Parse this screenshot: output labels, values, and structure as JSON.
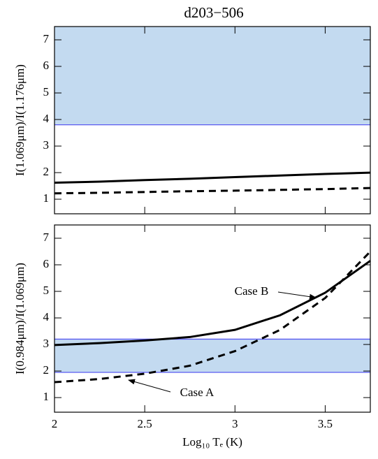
{
  "chart_data": [
    {
      "type": "line",
      "title": "d203−506",
      "ylabel": "I(1.069μm)/I(1.176μm)",
      "x": [
        2,
        2.25,
        2.5,
        2.75,
        3,
        3.25,
        3.5,
        3.75
      ],
      "series": [
        {
          "color": "#000000",
          "dash": false,
          "values": [
            1.62,
            1.66,
            1.72,
            1.77,
            1.83,
            1.89,
            1.95,
            2.0
          ]
        },
        {
          "color": "#000000",
          "dash": true,
          "values": [
            1.22,
            1.24,
            1.27,
            1.3,
            1.32,
            1.35,
            1.38,
            1.42
          ]
        }
      ],
      "band": [
        3.8,
        7.5
      ],
      "band_color": "#c3daf0",
      "band_edge_color": "#5a5af0",
      "xlim": [
        2,
        3.75
      ],
      "ylim": [
        0.45,
        7.5
      ],
      "xticks": [
        2,
        2.5,
        3,
        3.5
      ],
      "yticks": [
        1,
        2,
        3,
        4,
        5,
        6,
        7
      ]
    },
    {
      "type": "line",
      "ylabel": "I(0.984μm)/I(1.069μm)",
      "xlabel": "Log₁₀ Tₑ (K)",
      "x": [
        2,
        2.25,
        2.5,
        2.75,
        3,
        3.25,
        3.5,
        3.75
      ],
      "series": [
        {
          "name": "Case B",
          "color": "#000000",
          "dash": false,
          "values": [
            2.98,
            3.05,
            3.15,
            3.28,
            3.55,
            4.1,
            4.95,
            6.15
          ]
        },
        {
          "name": "Case A",
          "color": "#000000",
          "dash": true,
          "values": [
            1.58,
            1.7,
            1.9,
            2.2,
            2.75,
            3.55,
            4.75,
            6.5
          ]
        }
      ],
      "band": [
        1.95,
        3.2
      ],
      "band_color": "#c3daf0",
      "band_edge_color": "#5a5af0",
      "xlim": [
        2,
        3.75
      ],
      "ylim": [
        0.45,
        7.5
      ],
      "xticks": [
        2,
        2.5,
        3,
        3.5
      ],
      "yticks": [
        1,
        2,
        3,
        4,
        5,
        6,
        7
      ]
    }
  ]
}
